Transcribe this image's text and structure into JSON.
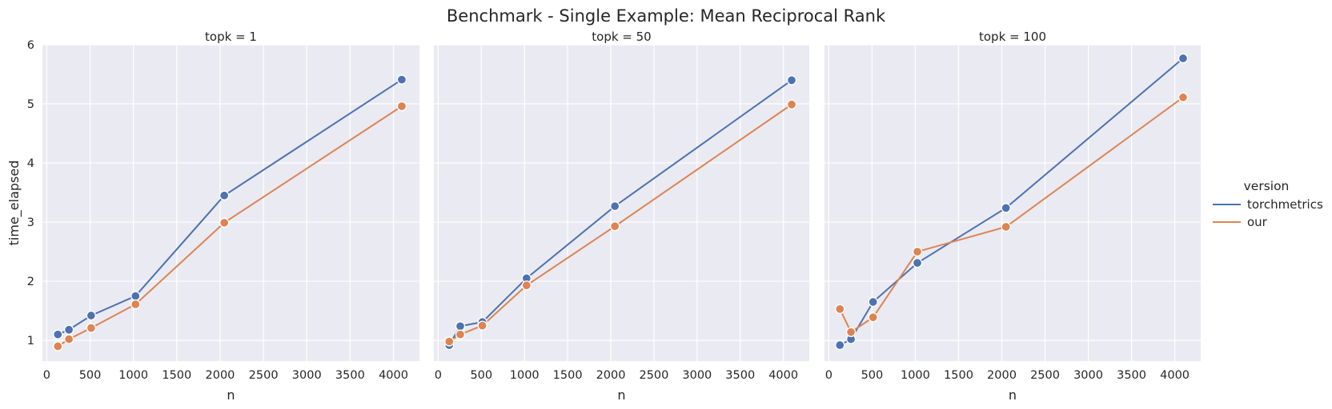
{
  "figure": {
    "title": "Benchmark - Single Example: Mean Reciprocal Rank"
  },
  "legend": {
    "title": "version",
    "placement": "right",
    "entries": [
      {
        "label": "torchmetrics",
        "color": "#4c72b0"
      },
      {
        "label": "our",
        "color": "#dd8452"
      }
    ]
  },
  "chart_data": [
    {
      "type": "line",
      "title": "topk = 1",
      "xlabel": "n",
      "ylabel": "time_elapsed",
      "xlim": [
        -50,
        4300
      ],
      "ylim": [
        0.65,
        6.0
      ],
      "xticks": [
        0,
        500,
        1000,
        1500,
        2000,
        2500,
        3000,
        3500,
        4000
      ],
      "yticks": [
        1,
        2,
        3,
        4,
        5,
        6
      ],
      "grid": true,
      "x": [
        128,
        256,
        512,
        1024,
        2048,
        4096
      ],
      "series": [
        {
          "name": "torchmetrics",
          "color": "#4c72b0",
          "values": [
            1.1,
            1.18,
            1.42,
            1.75,
            3.45,
            5.41
          ]
        },
        {
          "name": "our",
          "color": "#dd8452",
          "values": [
            0.9,
            1.02,
            1.21,
            1.61,
            2.99,
            4.96
          ]
        }
      ]
    },
    {
      "type": "line",
      "title": "topk = 50",
      "xlabel": "n",
      "ylabel": "",
      "xlim": [
        -50,
        4300
      ],
      "ylim": [
        0.65,
        6.0
      ],
      "xticks": [
        0,
        500,
        1000,
        1500,
        2000,
        2500,
        3000,
        3500,
        4000
      ],
      "yticks": [
        1,
        2,
        3,
        4,
        5,
        6
      ],
      "grid": true,
      "x": [
        128,
        256,
        512,
        1024,
        2048,
        4096
      ],
      "series": [
        {
          "name": "torchmetrics",
          "color": "#4c72b0",
          "values": [
            0.92,
            1.24,
            1.31,
            2.05,
            3.27,
            5.4
          ]
        },
        {
          "name": "our",
          "color": "#dd8452",
          "values": [
            0.98,
            1.1,
            1.25,
            1.93,
            2.93,
            4.99
          ]
        }
      ]
    },
    {
      "type": "line",
      "title": "topk = 100",
      "xlabel": "n",
      "ylabel": "",
      "xlim": [
        -50,
        4300
      ],
      "ylim": [
        0.65,
        6.0
      ],
      "xticks": [
        0,
        500,
        1000,
        1500,
        2000,
        2500,
        3000,
        3500,
        4000
      ],
      "yticks": [
        1,
        2,
        3,
        4,
        5,
        6
      ],
      "grid": true,
      "x": [
        128,
        256,
        512,
        1024,
        2048,
        4096
      ],
      "series": [
        {
          "name": "torchmetrics",
          "color": "#4c72b0",
          "values": [
            0.92,
            1.02,
            1.65,
            2.31,
            3.24,
            5.77
          ]
        },
        {
          "name": "our",
          "color": "#dd8452",
          "values": [
            1.53,
            1.14,
            1.39,
            2.5,
            2.92,
            5.11
          ]
        }
      ]
    }
  ]
}
